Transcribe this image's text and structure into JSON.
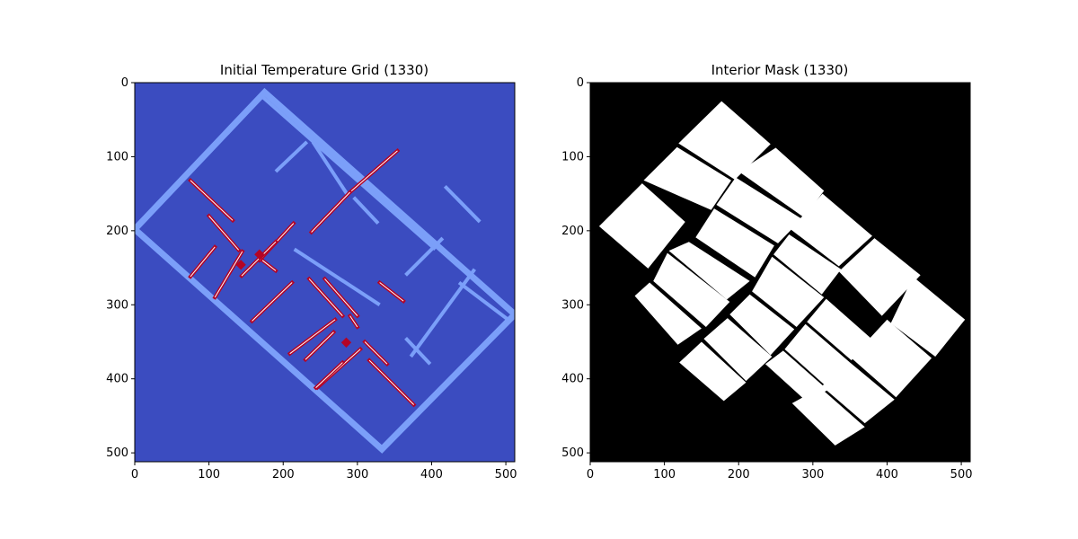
{
  "chart_data": [
    {
      "type": "heatmap",
      "title": "Initial Temperature Grid (1330)",
      "xlabel": "",
      "ylabel": "",
      "xlim": [
        0,
        512
      ],
      "ylim": [
        512,
        0
      ],
      "xticks": [
        0,
        100,
        200,
        300,
        400,
        500
      ],
      "yticks": [
        0,
        100,
        200,
        300,
        400,
        500
      ],
      "colormap": "coolwarm",
      "colors": {
        "background": "#3b4cc0",
        "wall": "#7b9ff9",
        "heat_source": "#b40426",
        "heat_core": "#ffffff"
      },
      "grid": false,
      "building_outline": [
        [
          175,
          13
        ],
        [
          512,
          313
        ],
        [
          333,
          495
        ],
        [
          0,
          198
        ]
      ],
      "wall_segments": [
        [
          [
            173,
            20
          ],
          [
            405,
            225
          ]
        ],
        [
          [
            418,
            140
          ],
          [
            465,
            188
          ]
        ],
        [
          [
            365,
            260
          ],
          [
            415,
            210
          ]
        ],
        [
          [
            240,
            80
          ],
          [
            287,
            152
          ]
        ],
        [
          [
            215,
            225
          ],
          [
            330,
            300
          ]
        ],
        [
          [
            295,
            155
          ],
          [
            328,
            190
          ]
        ],
        [
          [
            458,
            252
          ],
          [
            372,
            370
          ]
        ],
        [
          [
            437,
            270
          ],
          [
            503,
            320
          ]
        ],
        [
          [
            365,
            345
          ],
          [
            398,
            380
          ]
        ],
        [
          [
            232,
            80
          ],
          [
            190,
            120
          ]
        ]
      ],
      "heat_sources": [
        [
          [
            354,
            92
          ],
          [
            290,
            148
          ]
        ],
        [
          [
            290,
            148
          ],
          [
            238,
            202
          ]
        ],
        [
          [
            75,
            132
          ],
          [
            132,
            186
          ]
        ],
        [
          [
            100,
            180
          ],
          [
            140,
            226
          ]
        ],
        [
          [
            108,
            222
          ],
          [
            75,
            262
          ]
        ],
        [
          [
            145,
            228
          ],
          [
            108,
            290
          ]
        ],
        [
          [
            168,
            240
          ],
          [
            214,
            190
          ]
        ],
        [
          [
            190,
            215
          ],
          [
            144,
            261
          ]
        ],
        [
          [
            172,
            240
          ],
          [
            190,
            254
          ]
        ],
        [
          [
            212,
            270
          ],
          [
            158,
            322
          ]
        ],
        [
          [
            235,
            265
          ],
          [
            280,
            315
          ]
        ],
        [
          [
            256,
            265
          ],
          [
            300,
            315
          ]
        ],
        [
          [
            290,
            315
          ],
          [
            300,
            330
          ]
        ],
        [
          [
            270,
            320
          ],
          [
            209,
            366
          ]
        ],
        [
          [
            268,
            337
          ],
          [
            230,
            374
          ]
        ],
        [
          [
            310,
            350
          ],
          [
            340,
            380
          ]
        ],
        [
          [
            304,
            360
          ],
          [
            246,
            412
          ]
        ],
        [
          [
            280,
            378
          ],
          [
            244,
            412
          ]
        ],
        [
          [
            316,
            375
          ],
          [
            376,
            435
          ]
        ],
        [
          [
            330,
            270
          ],
          [
            362,
            295
          ]
        ]
      ],
      "hot_spots": [
        [
          143,
          246
        ],
        [
          285,
          351
        ],
        [
          168,
          232
        ]
      ]
    },
    {
      "type": "heatmap",
      "title": "Interior Mask (1330)",
      "xlabel": "",
      "ylabel": "",
      "xlim": [
        0,
        512
      ],
      "ylim": [
        512,
        0
      ],
      "xticks": [
        0,
        100,
        200,
        300,
        400,
        500
      ],
      "yticks": [
        0,
        100,
        200,
        300,
        400,
        500
      ],
      "colormap": "gray",
      "colors": {
        "background": "#000000",
        "interior": "#ffffff"
      },
      "grid": false,
      "rooms": [
        [
          [
            177,
            25
          ],
          [
            243,
            83
          ],
          [
            195,
            131
          ],
          [
            119,
            82
          ]
        ],
        [
          [
            117,
            87
          ],
          [
            190,
            132
          ],
          [
            163,
            172
          ],
          [
            72,
            132
          ]
        ],
        [
          [
            70,
            136
          ],
          [
            128,
            188
          ],
          [
            78,
            251
          ],
          [
            12,
            194
          ]
        ],
        [
          [
            250,
            88
          ],
          [
            315,
            146
          ],
          [
            288,
            182
          ],
          [
            200,
            120
          ]
        ],
        [
          [
            196,
            128
          ],
          [
            285,
            184
          ],
          [
            253,
            217
          ],
          [
            170,
            165
          ]
        ],
        [
          [
            167,
            170
          ],
          [
            248,
            220
          ],
          [
            222,
            263
          ],
          [
            142,
            209
          ]
        ],
        [
          [
            133,
            215
          ],
          [
            215,
            268
          ],
          [
            184,
            293
          ],
          [
            106,
            227
          ]
        ],
        [
          [
            104,
            230
          ],
          [
            188,
            296
          ],
          [
            156,
            330
          ],
          [
            85,
            268
          ]
        ],
        [
          [
            80,
            270
          ],
          [
            150,
            332
          ],
          [
            118,
            354
          ],
          [
            60,
            288
          ]
        ],
        [
          [
            313,
            150
          ],
          [
            380,
            207
          ],
          [
            335,
            248
          ],
          [
            270,
            198
          ]
        ],
        [
          [
            383,
            210
          ],
          [
            445,
            260
          ],
          [
            393,
            315
          ],
          [
            335,
            255
          ]
        ],
        [
          [
            268,
            205
          ],
          [
            338,
            252
          ],
          [
            312,
            286
          ],
          [
            247,
            232
          ]
        ],
        [
          [
            435,
            262
          ],
          [
            505,
            320
          ],
          [
            465,
            370
          ],
          [
            405,
            325
          ]
        ],
        [
          [
            400,
            320
          ],
          [
            460,
            372
          ],
          [
            412,
            425
          ],
          [
            352,
            372
          ]
        ],
        [
          [
            350,
            378
          ],
          [
            410,
            428
          ],
          [
            370,
            460
          ],
          [
            312,
            410
          ]
        ],
        [
          [
            310,
            412
          ],
          [
            370,
            465
          ],
          [
            330,
            490
          ],
          [
            272,
            433
          ]
        ],
        [
          [
            245,
            235
          ],
          [
            315,
            290
          ],
          [
            278,
            330
          ],
          [
            218,
            282
          ]
        ],
        [
          [
            215,
            286
          ],
          [
            275,
            333
          ],
          [
            243,
            368
          ],
          [
            188,
            313
          ]
        ],
        [
          [
            185,
            318
          ],
          [
            245,
            370
          ],
          [
            210,
            403
          ],
          [
            153,
            346
          ]
        ],
        [
          [
            150,
            350
          ],
          [
            210,
            405
          ],
          [
            180,
            430
          ],
          [
            120,
            378
          ]
        ],
        [
          [
            318,
            292
          ],
          [
            378,
            345
          ],
          [
            352,
            375
          ],
          [
            292,
            323
          ]
        ],
        [
          [
            290,
            326
          ],
          [
            350,
            378
          ],
          [
            320,
            412
          ],
          [
            262,
            360
          ]
        ],
        [
          [
            260,
            362
          ],
          [
            320,
            415
          ],
          [
            293,
            432
          ],
          [
            236,
            380
          ]
        ]
      ]
    }
  ]
}
